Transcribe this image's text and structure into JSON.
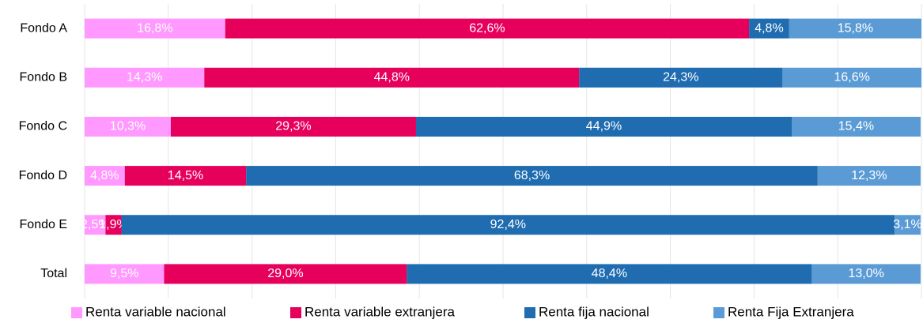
{
  "chart_data": {
    "type": "stacked-bar-horizontal",
    "categories": [
      "Fondo A",
      "Fondo B",
      "Fondo C",
      "Fondo D",
      "Fondo E",
      "Total"
    ],
    "xlim": [
      0,
      100
    ],
    "xticks": [
      0,
      10,
      20,
      30,
      40,
      50,
      60,
      70,
      80,
      90,
      100
    ],
    "grid": true,
    "legend_position": "bottom",
    "series": [
      {
        "name": "Renta variable nacional",
        "color": "#ff99ff",
        "values": [
          16.8,
          14.3,
          10.3,
          4.8,
          2.5,
          9.5
        ],
        "value_labels": [
          "16,8%",
          "14,3%",
          "10,3%",
          "4,8%",
          "2,5%",
          "9,5%"
        ]
      },
      {
        "name": "Renta variable extranjera",
        "color": "#e6005c",
        "values": [
          62.6,
          44.8,
          29.3,
          14.5,
          1.9,
          29.0
        ],
        "value_labels": [
          "62,6%",
          "44,8%",
          "29,3%",
          "14,5%",
          "1,9%",
          "29,0%"
        ]
      },
      {
        "name": "Renta fija nacional",
        "color": "#1f6cb0",
        "values": [
          4.8,
          24.3,
          44.9,
          68.3,
          92.4,
          48.4
        ],
        "value_labels": [
          "4,8%",
          "24,3%",
          "44,9%",
          "68,3%",
          "92,4%",
          "48,4%"
        ]
      },
      {
        "name": "Renta Fija Extranjera",
        "color": "#5b9bd5",
        "values": [
          15.8,
          16.6,
          15.4,
          12.3,
          3.1,
          13.0
        ],
        "value_labels": [
          "15,8%",
          "16,6%",
          "15,4%",
          "12,3%",
          "3,1%",
          "13,0%"
        ]
      }
    ]
  }
}
